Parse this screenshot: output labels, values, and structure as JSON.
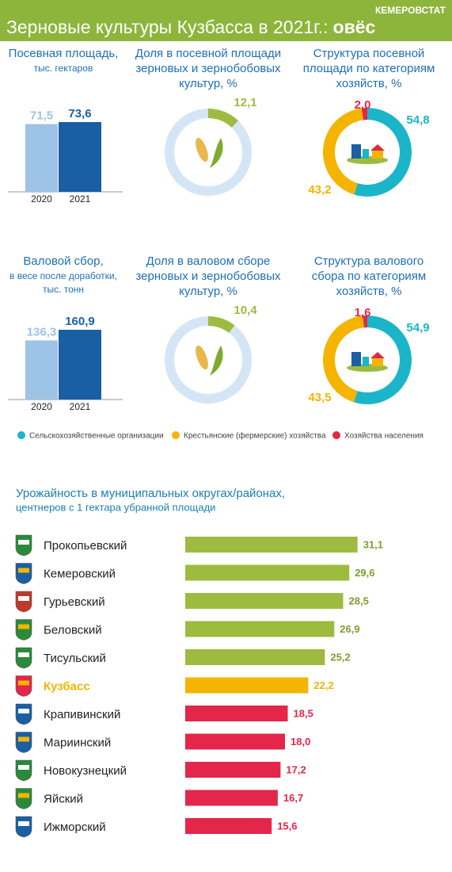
{
  "header": {
    "source": "КЕМЕРОВСТАТ",
    "title": "Зерновые культуры Кузбасса в 2021г.:",
    "title_bold": "овёс",
    "color": "#8db53c"
  },
  "legend": [
    {
      "name": "Сельскохозяйственные организации",
      "color": "#1bb5c9"
    },
    {
      "name": "Крестьянские (фермерские) хозяйства",
      "color": "#f5b400"
    },
    {
      "name": "Хозяйства населения",
      "color": "#e3264a"
    }
  ],
  "chart_data": [
    {
      "type": "bar",
      "title": [
        "Посевная площадь,"
      ],
      "subtitle": [
        "тыс. гектаров"
      ],
      "categories": [
        "2020",
        "2021"
      ],
      "values": [
        71.5,
        73.6
      ],
      "value_labels": [
        "71,5",
        "73,6"
      ],
      "colors": [
        "#9dc3e6",
        "#1a5fa3"
      ]
    },
    {
      "type": "donut",
      "title": [
        "Доля в посевной площади",
        "зерновых и зернобобовых",
        "культур, %"
      ],
      "values": [
        12.1
      ],
      "value_labels": [
        "12,1"
      ],
      "color": "#9dbb3f",
      "track_color": "#d4e5f6"
    },
    {
      "type": "pie",
      "title": [
        "Структура посевной",
        "площади по категориям",
        "хозяйств, %"
      ],
      "values": [
        54.8,
        43.2,
        2.0
      ],
      "value_labels": [
        "54,8",
        "43,2",
        "2,0"
      ]
    },
    {
      "type": "bar",
      "title": [
        "Валовой сбор,"
      ],
      "subtitle": [
        "в весе после доработки,",
        "тыс. тонн"
      ],
      "categories": [
        "2020",
        "2021"
      ],
      "values": [
        136.3,
        160.9
      ],
      "value_labels": [
        "136,3",
        "160,9"
      ],
      "colors": [
        "#9dc3e6",
        "#1a5fa3"
      ]
    },
    {
      "type": "donut",
      "title": [
        "Доля в валовом сборе",
        "зерновых и зернобобовых",
        "культур, %"
      ],
      "values": [
        10.4
      ],
      "value_labels": [
        "10,4"
      ],
      "color": "#9dbb3f",
      "track_color": "#d4e5f6"
    },
    {
      "type": "pie",
      "title": [
        "Структура валового",
        "сбора по категориям",
        "хозяйств, %"
      ],
      "values": [
        54.9,
        43.5,
        1.6
      ],
      "value_labels": [
        "54,9",
        "43,5",
        "1,6"
      ]
    },
    {
      "type": "barh",
      "title": "Урожайность в муниципальных округах/районах,",
      "subtitle": "центнеров с 1 гектара убранной площади",
      "categories": [
        "Прокопьевский",
        "Кемеровский",
        "Гурьевский",
        "Беловский",
        "Тисульский",
        "Кузбасс",
        "Крапивинский",
        "Мариинский",
        "Новокузнецкий",
        "Яйский",
        "Ижморский"
      ],
      "values": [
        31.1,
        29.6,
        28.5,
        26.9,
        25.2,
        22.2,
        18.5,
        18.0,
        17.2,
        16.7,
        15.6
      ],
      "value_labels": [
        "31,1",
        "29,6",
        "28,5",
        "26,9",
        "25,2",
        "22,2",
        "18,5",
        "18,0",
        "17,2",
        "16,7",
        "15,6"
      ],
      "colors": [
        "#9dbb3f",
        "#9dbb3f",
        "#9dbb3f",
        "#9dbb3f",
        "#9dbb3f",
        "#f5b400",
        "#e3264a",
        "#e3264a",
        "#e3264a",
        "#e3264a",
        "#e3264a"
      ],
      "highlight": 5
    }
  ]
}
